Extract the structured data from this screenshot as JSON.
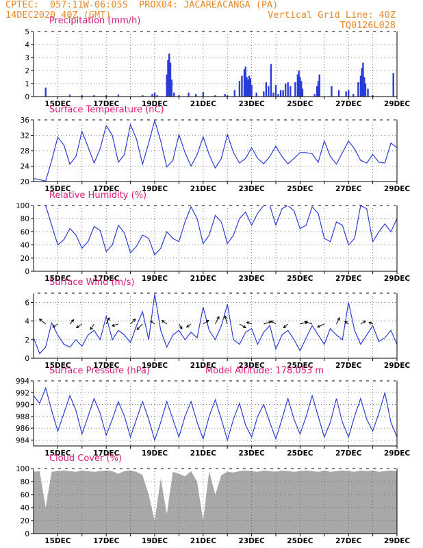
{
  "header": {
    "line1_left": "CPTEC:  057:11W-06:05S  PROX04: JACAREACANGA (PA)",
    "line2_left": "14DEC2020 40Z (GMT)",
    "line2_right": "Vertical Grid Line: 40Z",
    "line3_right": "TQ0126L028"
  },
  "colors": {
    "line": "#2a3cd8",
    "bar": "#2a3cd8",
    "cloud": "#a8a8a8",
    "title": "#e0157a",
    "header": "#e8892a"
  },
  "chart_data": [
    {
      "type": "bar",
      "title": "Precipitation (mm/h)",
      "ylim": [
        0,
        5
      ],
      "yticks": [
        0,
        1,
        2,
        3,
        4,
        5
      ],
      "xlim": [
        14,
        29
      ],
      "xticks": [
        "15DEC",
        "17DEC",
        "19DEC",
        "21DEC",
        "23DEC",
        "25DEC",
        "27DEC",
        "29DEC"
      ],
      "x": [
        14.5,
        15.5,
        16.0,
        16.5,
        17.0,
        17.5,
        18.5,
        18.9,
        19.0,
        19.1,
        19.5,
        19.55,
        19.6,
        19.65,
        19.7,
        19.8,
        20.0,
        20.4,
        20.7,
        21.0,
        21.5,
        21.9,
        22.0,
        22.3,
        22.5,
        22.6,
        22.7,
        22.75,
        22.8,
        22.85,
        22.9,
        22.95,
        23.0,
        23.2,
        23.5,
        23.6,
        23.7,
        23.8,
        23.9,
        24.0,
        24.1,
        24.2,
        24.3,
        24.4,
        24.5,
        24.6,
        24.8,
        24.9,
        24.95,
        25.0,
        25.05,
        25.1,
        25.6,
        25.7,
        25.75,
        25.8,
        26.3,
        26.6,
        26.9,
        27.0,
        27.2,
        27.4,
        27.5,
        27.55,
        27.6,
        27.65,
        27.7,
        27.8,
        28.0,
        28.85
      ],
      "values": [
        0.7,
        0.15,
        0.1,
        0.1,
        0.1,
        0.15,
        0.1,
        0.2,
        0.3,
        0.1,
        1.7,
        2.8,
        3.3,
        2.6,
        1.3,
        0.3,
        0.1,
        0.3,
        0.2,
        0.35,
        0.1,
        0.2,
        0.1,
        0.5,
        1.2,
        1.6,
        2.1,
        2.3,
        1.5,
        1.3,
        1.6,
        1.4,
        0.9,
        0.3,
        0.4,
        1.1,
        0.8,
        2.5,
        0.3,
        0.9,
        0.2,
        0.5,
        0.5,
        1.0,
        1.1,
        0.8,
        1.1,
        1.7,
        2.0,
        1.5,
        1.2,
        0.6,
        0.2,
        0.8,
        1.2,
        1.7,
        0.8,
        0.5,
        0.4,
        0.5,
        0.2,
        1.1,
        1.6,
        2.2,
        2.6,
        1.5,
        1.0,
        0.6,
        0.1,
        1.8
      ]
    },
    {
      "type": "line",
      "title": "Surface Temperature (nC)",
      "ylim": [
        20,
        36
      ],
      "yticks": [
        20,
        24,
        28,
        32,
        36
      ],
      "xlim": [
        14,
        29
      ],
      "xticks": [
        "15DEC",
        "17DEC",
        "19DEC",
        "21DEC",
        "23DEC",
        "25DEC",
        "27DEC",
        "29DEC"
      ],
      "x": [
        14.0,
        14.25,
        14.5,
        14.75,
        15.0,
        15.25,
        15.5,
        15.75,
        16.0,
        16.25,
        16.5,
        16.75,
        17.0,
        17.25,
        17.5,
        17.75,
        18.0,
        18.25,
        18.5,
        18.75,
        19.0,
        19.25,
        19.5,
        19.75,
        20.0,
        20.25,
        20.5,
        20.75,
        21.0,
        21.25,
        21.5,
        21.75,
        22.0,
        22.25,
        22.5,
        22.75,
        23.0,
        23.25,
        23.5,
        23.75,
        24.0,
        24.25,
        24.5,
        24.75,
        25.0,
        25.25,
        25.5,
        25.75,
        26.0,
        26.25,
        26.5,
        26.75,
        27.0,
        27.25,
        27.5,
        27.75,
        28.0,
        28.25,
        28.5,
        28.75,
        29.0
      ],
      "values": [
        20.8,
        20.5,
        20.1,
        25.5,
        31.5,
        29.5,
        24.5,
        26.5,
        33.0,
        29.0,
        24.8,
        28.5,
        34.5,
        32.0,
        25.0,
        27.0,
        34.8,
        31.0,
        24.5,
        30.0,
        35.8,
        30.5,
        23.8,
        25.5,
        32.2,
        27.5,
        24.0,
        27.0,
        31.6,
        27.0,
        23.5,
        26.0,
        32.2,
        27.5,
        24.8,
        26.0,
        28.8,
        26.0,
        24.6,
        26.5,
        29.2,
        26.5,
        24.6,
        26.0,
        27.5,
        27.5,
        27.2,
        25.0,
        30.5,
        26.5,
        24.5,
        27.5,
        30.5,
        28.5,
        25.5,
        24.8,
        27.0,
        25.0,
        24.8,
        30.0,
        28.8
      ]
    },
    {
      "type": "line",
      "title": "Relative Humidity (%)",
      "ylim": [
        0,
        100
      ],
      "yticks": [
        0,
        20,
        40,
        60,
        80,
        100
      ],
      "xlim": [
        14,
        29
      ],
      "xticks": [
        "15DEC",
        "17DEC",
        "19DEC",
        "21DEC",
        "23DEC",
        "25DEC",
        "27DEC",
        "29DEC"
      ],
      "x": [
        14.0,
        14.25,
        14.5,
        14.75,
        15.0,
        15.25,
        15.5,
        15.75,
        16.0,
        16.25,
        16.5,
        16.75,
        17.0,
        17.25,
        17.5,
        17.75,
        18.0,
        18.25,
        18.5,
        18.75,
        19.0,
        19.25,
        19.5,
        19.75,
        20.0,
        20.25,
        20.5,
        20.75,
        21.0,
        21.25,
        21.5,
        21.75,
        22.0,
        22.25,
        22.5,
        22.75,
        23.0,
        23.25,
        23.5,
        23.75,
        24.0,
        24.25,
        24.5,
        24.75,
        25.0,
        25.25,
        25.5,
        25.75,
        26.0,
        26.25,
        26.5,
        26.75,
        27.0,
        27.25,
        27.5,
        27.75,
        28.0,
        28.25,
        28.5,
        28.75,
        29.0
      ],
      "values": [
        100,
        100,
        100,
        70,
        40,
        48,
        65,
        55,
        35,
        45,
        68,
        62,
        30,
        40,
        70,
        58,
        28,
        38,
        55,
        50,
        25,
        35,
        60,
        50,
        45,
        75,
        98,
        80,
        42,
        55,
        85,
        75,
        42,
        55,
        80,
        90,
        70,
        88,
        100,
        100,
        70,
        95,
        100,
        92,
        65,
        70,
        98,
        88,
        50,
        45,
        75,
        70,
        40,
        50,
        100,
        95,
        45,
        60,
        72,
        60,
        80
      ]
    },
    {
      "type": "line",
      "title": "Surface Wind (m/s)",
      "ylim": [
        0,
        7
      ],
      "yticks": [
        0,
        2,
        4,
        6
      ],
      "xlim": [
        14,
        29
      ],
      "xticks": [
        "15DEC",
        "17DEC",
        "19DEC",
        "21DEC",
        "23DEC",
        "25DEC",
        "27DEC",
        "29DEC"
      ],
      "x": [
        14.0,
        14.25,
        14.5,
        14.75,
        15.0,
        15.25,
        15.5,
        15.75,
        16.0,
        16.25,
        16.5,
        16.75,
        17.0,
        17.25,
        17.5,
        17.75,
        18.0,
        18.25,
        18.5,
        18.75,
        19.0,
        19.25,
        19.5,
        19.75,
        20.0,
        20.25,
        20.5,
        20.75,
        21.0,
        21.25,
        21.5,
        21.75,
        22.0,
        22.25,
        22.5,
        22.75,
        23.0,
        23.25,
        23.5,
        23.75,
        24.0,
        24.25,
        24.5,
        24.75,
        25.0,
        25.25,
        25.5,
        25.75,
        26.0,
        26.25,
        26.5,
        26.75,
        27.0,
        27.25,
        27.5,
        27.75,
        28.0,
        28.25,
        28.5,
        28.75,
        29.0
      ],
      "values": [
        2.2,
        0.5,
        1.2,
        3.8,
        2.5,
        1.5,
        1.2,
        2.0,
        1.3,
        2.5,
        3.0,
        2.0,
        4.5,
        2.0,
        3.0,
        2.5,
        1.7,
        3.5,
        5.0,
        2.0,
        6.9,
        3.0,
        1.2,
        2.5,
        3.0,
        2.0,
        2.8,
        2.2,
        5.5,
        3.0,
        2.0,
        3.5,
        5.8,
        2.0,
        1.5,
        2.8,
        3.2,
        1.5,
        2.8,
        3.5,
        1.0,
        2.5,
        3.0,
        2.0,
        0.8,
        2.2,
        3.5,
        2.5,
        1.5,
        3.2,
        2.5,
        2.0,
        6.0,
        3.0,
        1.5,
        2.5,
        3.5,
        1.8,
        2.2,
        3.0,
        1.5
      ],
      "wind_arrows": [
        {
          "x": 14.5,
          "u": -1,
          "v": 0.8
        },
        {
          "x": 15.0,
          "u": -0.8,
          "v": -0.5
        },
        {
          "x": 15.5,
          "u": 0.6,
          "v": 0.7
        },
        {
          "x": 16.0,
          "u": -0.9,
          "v": -0.6
        },
        {
          "x": 16.5,
          "u": -0.6,
          "v": -0.9
        },
        {
          "x": 17.0,
          "u": 0.5,
          "v": 1.0
        },
        {
          "x": 17.5,
          "u": -1,
          "v": -0.3
        },
        {
          "x": 18.0,
          "u": 0.8,
          "v": 0.8
        },
        {
          "x": 18.5,
          "u": -0.9,
          "v": -0.9
        },
        {
          "x": 19.0,
          "u": -0.7,
          "v": 0.5
        },
        {
          "x": 19.5,
          "u": -0.8,
          "v": 0.6
        },
        {
          "x": 20.0,
          "u": 0.5,
          "v": -0.8
        },
        {
          "x": 20.5,
          "u": -0.7,
          "v": -0.5
        },
        {
          "x": 21.0,
          "u": 0.9,
          "v": 0.6
        },
        {
          "x": 21.5,
          "u": 0.6,
          "v": 1.2
        },
        {
          "x": 22.0,
          "u": -0.4,
          "v": 1.3
        },
        {
          "x": 22.5,
          "u": 1.0,
          "v": -0.6
        },
        {
          "x": 23.0,
          "u": -0.8,
          "v": 0.3
        },
        {
          "x": 23.5,
          "u": 1.2,
          "v": 0.4
        },
        {
          "x": 24.0,
          "u": -0.8,
          "v": 0.5
        },
        {
          "x": 24.5,
          "u": -0.7,
          "v": -0.6
        },
        {
          "x": 25.0,
          "u": 1.2,
          "v": 0.3
        },
        {
          "x": 25.5,
          "u": -1.2,
          "v": 0.4
        },
        {
          "x": 26.0,
          "u": -1.1,
          "v": -0.5
        },
        {
          "x": 26.5,
          "u": 0.5,
          "v": 1.0
        },
        {
          "x": 27.0,
          "u": -0.6,
          "v": 0.4
        },
        {
          "x": 27.5,
          "u": 0.8,
          "v": 0.5
        },
        {
          "x": 28.0,
          "u": -0.6,
          "v": 0.3
        }
      ]
    },
    {
      "type": "line",
      "title": "Surface Pressure (hPa)",
      "annotation": "Model Altitude: 178.053 m",
      "ylim": [
        983,
        994
      ],
      "yticks": [
        984,
        986,
        988,
        990,
        992,
        994
      ],
      "xlim": [
        14,
        29
      ],
      "xticks": [
        "15DEC",
        "17DEC",
        "19DEC",
        "21DEC",
        "23DEC",
        "25DEC",
        "27DEC",
        "29DEC"
      ],
      "x": [
        14.0,
        14.25,
        14.5,
        14.75,
        15.0,
        15.25,
        15.5,
        15.75,
        16.0,
        16.25,
        16.5,
        16.75,
        17.0,
        17.25,
        17.5,
        17.75,
        18.0,
        18.25,
        18.5,
        18.75,
        19.0,
        19.25,
        19.5,
        19.75,
        20.0,
        20.25,
        20.5,
        20.75,
        21.0,
        21.25,
        21.5,
        21.75,
        22.0,
        22.25,
        22.5,
        22.75,
        23.0,
        23.25,
        23.5,
        23.75,
        24.0,
        24.25,
        24.5,
        24.75,
        25.0,
        25.25,
        25.5,
        25.75,
        26.0,
        26.25,
        26.5,
        26.75,
        27.0,
        27.25,
        27.5,
        27.75,
        28.0,
        28.25,
        28.5,
        28.75,
        29.0
      ],
      "values": [
        991.5,
        990.2,
        992.8,
        989.0,
        985.5,
        988.5,
        991.5,
        989.0,
        985.0,
        988.0,
        991.0,
        988.5,
        984.8,
        987.5,
        990.5,
        988.0,
        984.5,
        987.5,
        990.5,
        987.5,
        984.0,
        987.0,
        990.5,
        987.5,
        984.5,
        988.0,
        990.5,
        987.0,
        984.2,
        988.0,
        990.8,
        987.5,
        984.0,
        987.5,
        990.2,
        986.5,
        984.5,
        988.0,
        990.0,
        987.0,
        984.2,
        987.5,
        991.0,
        987.5,
        985.0,
        988.0,
        991.5,
        988.0,
        984.5,
        987.0,
        991.0,
        987.0,
        984.5,
        988.0,
        991.0,
        987.5,
        985.5,
        988.5,
        992.0,
        987.0,
        984.5
      ]
    },
    {
      "type": "area",
      "title": "Cloud Cover (%)",
      "ylim": [
        0,
        100
      ],
      "yticks": [
        0,
        20,
        40,
        60,
        80,
        100
      ],
      "xlim": [
        14,
        29
      ],
      "xticks": [
        "15DEC",
        "17DEC",
        "19DEC",
        "21DEC",
        "23DEC",
        "25DEC",
        "27DEC",
        "29DEC"
      ],
      "x": [
        14.0,
        14.25,
        14.5,
        14.75,
        15.0,
        15.25,
        15.5,
        15.75,
        16.0,
        16.25,
        16.5,
        16.75,
        17.0,
        17.25,
        17.5,
        17.75,
        18.0,
        18.25,
        18.5,
        18.75,
        19.0,
        19.25,
        19.5,
        19.75,
        20.0,
        20.25,
        20.5,
        20.75,
        21.0,
        21.25,
        21.5,
        21.75,
        22.0,
        22.25,
        22.5,
        22.75,
        23.0,
        23.25,
        23.5,
        23.75,
        24.0,
        24.25,
        24.5,
        24.75,
        25.0,
        25.25,
        25.5,
        25.75,
        26.0,
        26.25,
        26.5,
        26.75,
        27.0,
        27.25,
        27.5,
        27.75,
        28.0,
        28.25,
        28.5,
        28.75,
        29.0
      ],
      "values": [
        95,
        96,
        40,
        95,
        96,
        97,
        96,
        95,
        97,
        96,
        95,
        96,
        97,
        96,
        92,
        96,
        97,
        95,
        90,
        60,
        20,
        85,
        30,
        95,
        92,
        88,
        96,
        80,
        20,
        96,
        60,
        90,
        95,
        94,
        96,
        97,
        96,
        95,
        97,
        96,
        95,
        97,
        96,
        95,
        96,
        97,
        96,
        95,
        97,
        95,
        96,
        97,
        96,
        95,
        97,
        96,
        97,
        95,
        96,
        97,
        96
      ]
    }
  ]
}
